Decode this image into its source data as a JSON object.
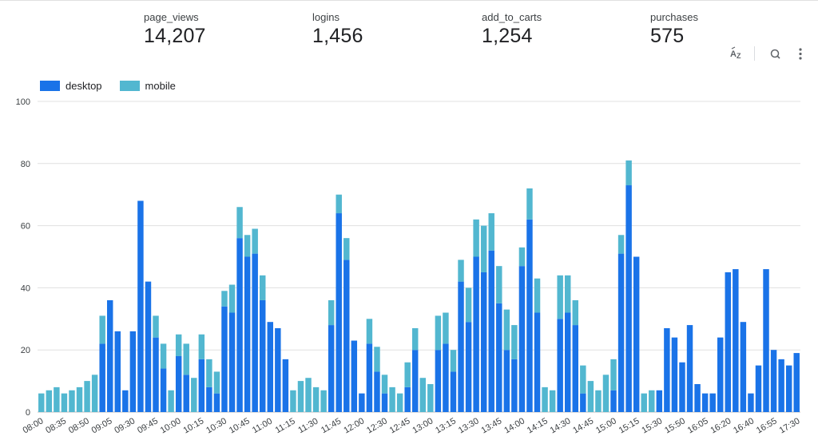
{
  "metrics": [
    {
      "label": "page_views",
      "value": "14,207"
    },
    {
      "label": "logins",
      "value": "1,456"
    },
    {
      "label": "add_to_carts",
      "value": "1,254"
    },
    {
      "label": "purchases",
      "value": "575"
    }
  ],
  "toolbar": {
    "sort_icon": "sort-az-icon",
    "zoom_icon": "zoom-icon",
    "menu_icon": "more-vert-icon"
  },
  "colors": {
    "desktop": "#1a73e8",
    "mobile": "#52b7d0",
    "grid": "#e0e0e0"
  },
  "chart_data": {
    "type": "bar",
    "stacked": true,
    "legend_position": "top-left",
    "grid": true,
    "ylim": [
      0,
      100
    ],
    "yticks": [
      0,
      20,
      40,
      60,
      80,
      100
    ],
    "x_tick_labels": [
      "08:00",
      "08:35",
      "08:50",
      "09:05",
      "09:30",
      "09:45",
      "10:00",
      "10:15",
      "10:30",
      "10:45",
      "11:00",
      "11:15",
      "11:30",
      "11:45",
      "12:00",
      "12:30",
      "12:45",
      "13:00",
      "13:15",
      "13:30",
      "13:45",
      "14:00",
      "14:15",
      "14:30",
      "14:45",
      "15:00",
      "15:15",
      "15:30",
      "15:50",
      "16:05",
      "16:20",
      "16:40",
      "16:55",
      "17:30"
    ],
    "series": [
      {
        "name": "desktop",
        "values": [
          0,
          0,
          0,
          0,
          0,
          0,
          0,
          0,
          22,
          36,
          26,
          7,
          26,
          68,
          42,
          24,
          14,
          0,
          18,
          12,
          0,
          17,
          8,
          6,
          34,
          32,
          56,
          50,
          51,
          36,
          29,
          27,
          17,
          0,
          0,
          0,
          0,
          0,
          28,
          64,
          49,
          23,
          6,
          22,
          13,
          6,
          0,
          0,
          8,
          20,
          0,
          0,
          20,
          22,
          13,
          42,
          29,
          50,
          45,
          52,
          35,
          20,
          17,
          47,
          62,
          32,
          0,
          0,
          30,
          32,
          28,
          6,
          0,
          0,
          0,
          7,
          51,
          73,
          50,
          0,
          0,
          7,
          27,
          24,
          16,
          28,
          9,
          6,
          6,
          24,
          45,
          46,
          29,
          6,
          15,
          46,
          20,
          17,
          15,
          19
        ]
      },
      {
        "name": "mobile",
        "values": [
          6,
          7,
          8,
          6,
          7,
          8,
          10,
          12,
          9,
          0,
          0,
          0,
          0,
          0,
          0,
          7,
          8,
          7,
          7,
          10,
          11,
          8,
          9,
          7,
          5,
          9,
          10,
          7,
          8,
          8,
          0,
          0,
          0,
          7,
          10,
          11,
          8,
          7,
          8,
          6,
          7,
          0,
          0,
          8,
          8,
          6,
          8,
          6,
          8,
          7,
          11,
          9,
          11,
          10,
          7,
          7,
          11,
          12,
          15,
          12,
          12,
          13,
          11,
          6,
          10,
          11,
          8,
          7,
          14,
          12,
          8,
          9,
          10,
          7,
          12,
          10,
          6,
          8,
          0,
          6,
          7,
          0,
          0,
          0,
          0,
          0,
          0,
          0,
          0,
          0,
          0,
          0,
          0,
          0,
          0,
          0,
          0,
          0,
          0,
          0
        ]
      }
    ]
  }
}
